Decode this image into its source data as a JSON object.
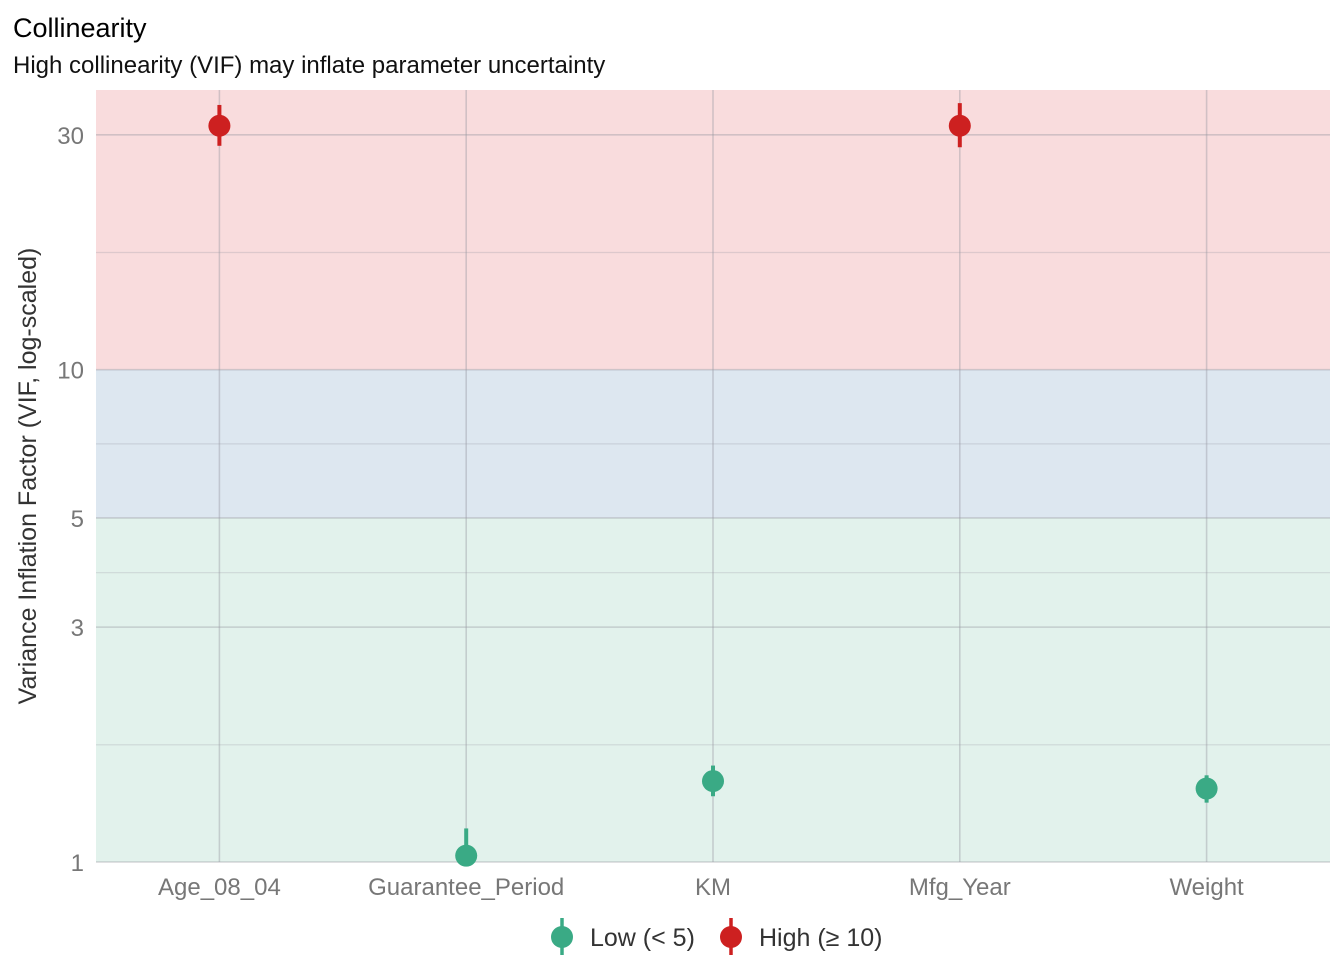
{
  "chart_data": {
    "type": "scatter",
    "title": "Collinearity",
    "subtitle": "High collinearity (VIF) may inflate parameter uncertainty",
    "xlabel": "",
    "ylabel": "Variance Inflation Factor (VIF, log-scaled)",
    "y_scale": "log",
    "ylim": [
      1,
      37
    ],
    "y_ticks": [
      1,
      3,
      5,
      10,
      30
    ],
    "y_minor_ticks": [
      1.73,
      3.87,
      7.07,
      17.3
    ],
    "grid": true,
    "categories": [
      "Age_08_04",
      "Guarantee_Period",
      "KM",
      "Mfg_Year",
      "Weight"
    ],
    "points": [
      {
        "x": "Age_08_04",
        "vif": 31.3,
        "low": 28.5,
        "high": 34.5,
        "group": "High (≥ 10)"
      },
      {
        "x": "Guarantee_Period",
        "vif": 1.03,
        "low": 1.0,
        "high": 1.17,
        "group": "Low (< 5)"
      },
      {
        "x": "KM",
        "vif": 1.46,
        "low": 1.36,
        "high": 1.57,
        "group": "Low (< 5)"
      },
      {
        "x": "Mfg_Year",
        "vif": 31.3,
        "low": 28.3,
        "high": 34.8,
        "group": "High (≥ 10)"
      },
      {
        "x": "Weight",
        "vif": 1.41,
        "low": 1.32,
        "high": 1.5,
        "group": "Low (< 5)"
      }
    ],
    "bands": [
      {
        "from": 1,
        "to": 5,
        "color": "#e2f2ec"
      },
      {
        "from": 5,
        "to": 10,
        "color": "#dde7f0"
      },
      {
        "from": 10,
        "to": 37,
        "color": "#f9dcdd"
      }
    ],
    "legend": {
      "placement": "bottom",
      "entries": [
        {
          "label": "Low (< 5)",
          "color": "#3aaa85"
        },
        {
          "label": "High (≥ 10)",
          "color": "#cd2020"
        }
      ]
    }
  }
}
